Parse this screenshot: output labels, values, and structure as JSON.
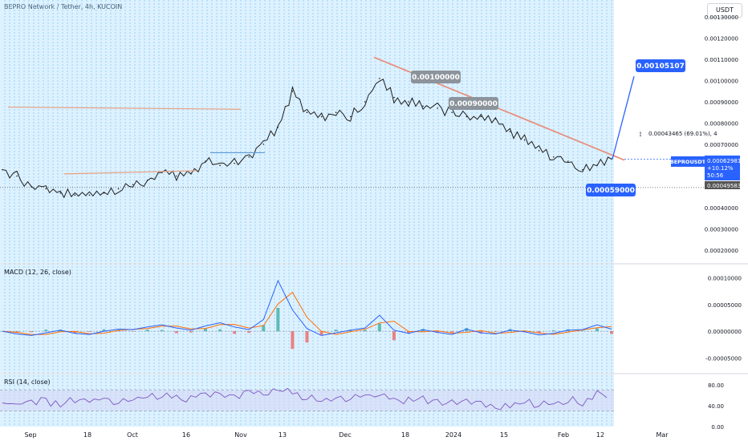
{
  "header": {
    "title": "BEPRO Network / Tether, 4h, KUCOIN",
    "currency_button": "USDT"
  },
  "colors": {
    "grid_bg": "#9fd8ff",
    "price_line": "#1e1e1e",
    "trendline": "#e8907d",
    "ma_line": "#e8a080",
    "projection": "#2962ff",
    "macd_line": "#2962ff",
    "signal_line": "#ff6d00",
    "hist_up": "#26a69a",
    "hist_down": "#ef5350",
    "rsi_line": "#7e57c2",
    "rsi_band": "#d6d9f5"
  },
  "chart_data": [
    {
      "type": "line",
      "name": "price",
      "title": "BEPRO Network / Tether, 4h, KUCOIN",
      "x_ticks": [
        "Sep",
        "18",
        "Oct",
        "16",
        "Nov",
        "13",
        "Dec",
        "18",
        "2024",
        "15",
        "Feb",
        "12",
        "Mar"
      ],
      "y_ticks": [
        "0.00130000",
        "0.00120000",
        "0.00110000",
        "0.00100000",
        "0.00090000",
        "0.00080000",
        "0.00070000",
        "0.00060000",
        "0.00050000",
        "0.00040000",
        "0.00030000",
        "0.00020000"
      ],
      "ylim": [
        0.00014,
        0.00138
      ],
      "series": [
        {
          "values": [
            0.00058,
            0.00055,
            0.0005,
            0.00049,
            0.00047,
            0.00046,
            0.00046,
            0.00047,
            0.00049,
            0.00051,
            0.00053,
            0.00057,
            0.00055,
            0.00056,
            0.00062,
            0.0006,
            0.00061,
            0.00064,
            0.0007,
            0.00078,
            0.00095,
            0.00085,
            0.00083,
            0.00085,
            0.00083,
            0.0009,
            0.00101,
            0.00092,
            0.0009,
            0.00088,
            0.00087,
            0.00085,
            0.00083,
            0.00083,
            0.00082,
            0.00076,
            0.00072,
            0.00067,
            0.00064,
            0.00062,
            0.00058,
            0.0006,
            0.00063
          ]
        }
      ],
      "annotations": {
        "price_labels": [
          "0.00100000",
          "0.00090000",
          "0.00059000",
          "0.00105107"
        ],
        "range_measure": "0.00043465 (69.01%), 4",
        "symbol_tag": "BEPROUSDT",
        "last_price": "0.00062981",
        "change": "+10.12%",
        "countdown": "50:56",
        "low_tag": "0.00049583"
      }
    },
    {
      "type": "line",
      "name": "MACD",
      "title": "MACD (12, 26, close)",
      "y_ticks": [
        "0.00010000",
        "0.00005000",
        "0.00000000",
        "-0.00005000"
      ],
      "ylim": [
        -7.8e-05,
        0.000125
      ],
      "series": [
        {
          "values": [
            0.0,
            -5e-06,
            -8e-06,
            -3e-06,
            2e-06,
            -4e-06,
            -6e-06,
            0.0,
            4e-06,
            3e-06,
            8e-06,
            1.2e-05,
            6e-06,
            2e-06,
            1e-05,
            1.6e-05,
            8e-06,
            3e-06,
            2.2e-05,
            9.5e-05,
            4e-05,
            5e-06,
            -8e-06,
            -3e-06,
            2e-06,
            6e-06,
            3e-05,
            2e-06,
            -4e-06,
            3e-06,
            -2e-06,
            -6e-06,
            4e-06,
            -3e-06,
            -5e-06,
            2e-06,
            -1e-06,
            -7e-06,
            -4e-06,
            2e-06,
            3e-06,
            1.2e-05,
            4e-06
          ]
        }
      ]
    },
    {
      "type": "line",
      "name": "RSI",
      "title": "RSI (14, close)",
      "y_ticks": [
        "80.00",
        "40.00",
        "0.00"
      ],
      "ylim": [
        0,
        100
      ],
      "series": [
        {
          "values": [
            45,
            42,
            50,
            48,
            44,
            52,
            49,
            55,
            47,
            51,
            57,
            60,
            53,
            55,
            62,
            58,
            56,
            66,
            60,
            70,
            63,
            55,
            50,
            58,
            54,
            62,
            57,
            53,
            49,
            51,
            47,
            44,
            48,
            43,
            38,
            42,
            47,
            40,
            44,
            52,
            47,
            62,
            58
          ]
        }
      ]
    }
  ]
}
